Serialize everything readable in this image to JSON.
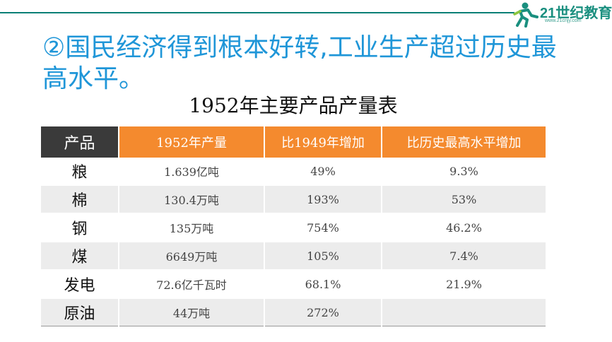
{
  "logo": {
    "text": "21世纪教育",
    "url": "www.21cnjy.com"
  },
  "heading": "②国民经济得到根本好转,工业生产超过历史最高水平。",
  "table_title": "1952年主要产品产量表",
  "table": {
    "headers": [
      "产品",
      "1952年产量",
      "比1949年增加",
      "比历史最高水平增加"
    ],
    "rows": [
      [
        "粮",
        "1.639亿吨",
        "49%",
        "9.3%"
      ],
      [
        "棉",
        "130.4万吨",
        "193%",
        "53%"
      ],
      [
        "钢",
        "135万吨",
        "754%",
        "46.2%"
      ],
      [
        "煤",
        "6649万吨",
        "105%",
        "7.4%"
      ],
      [
        "发电",
        "72.6亿千瓦时",
        "68.1%",
        "21.9%"
      ],
      [
        "原油",
        "44万吨",
        "272%",
        ""
      ]
    ]
  },
  "colors": {
    "heading": "#1f96d8",
    "header_orange": "#f48a2e",
    "header_dark": "#3a3a3a",
    "stripe": "#ececec",
    "brand": "#1a8f7f"
  }
}
